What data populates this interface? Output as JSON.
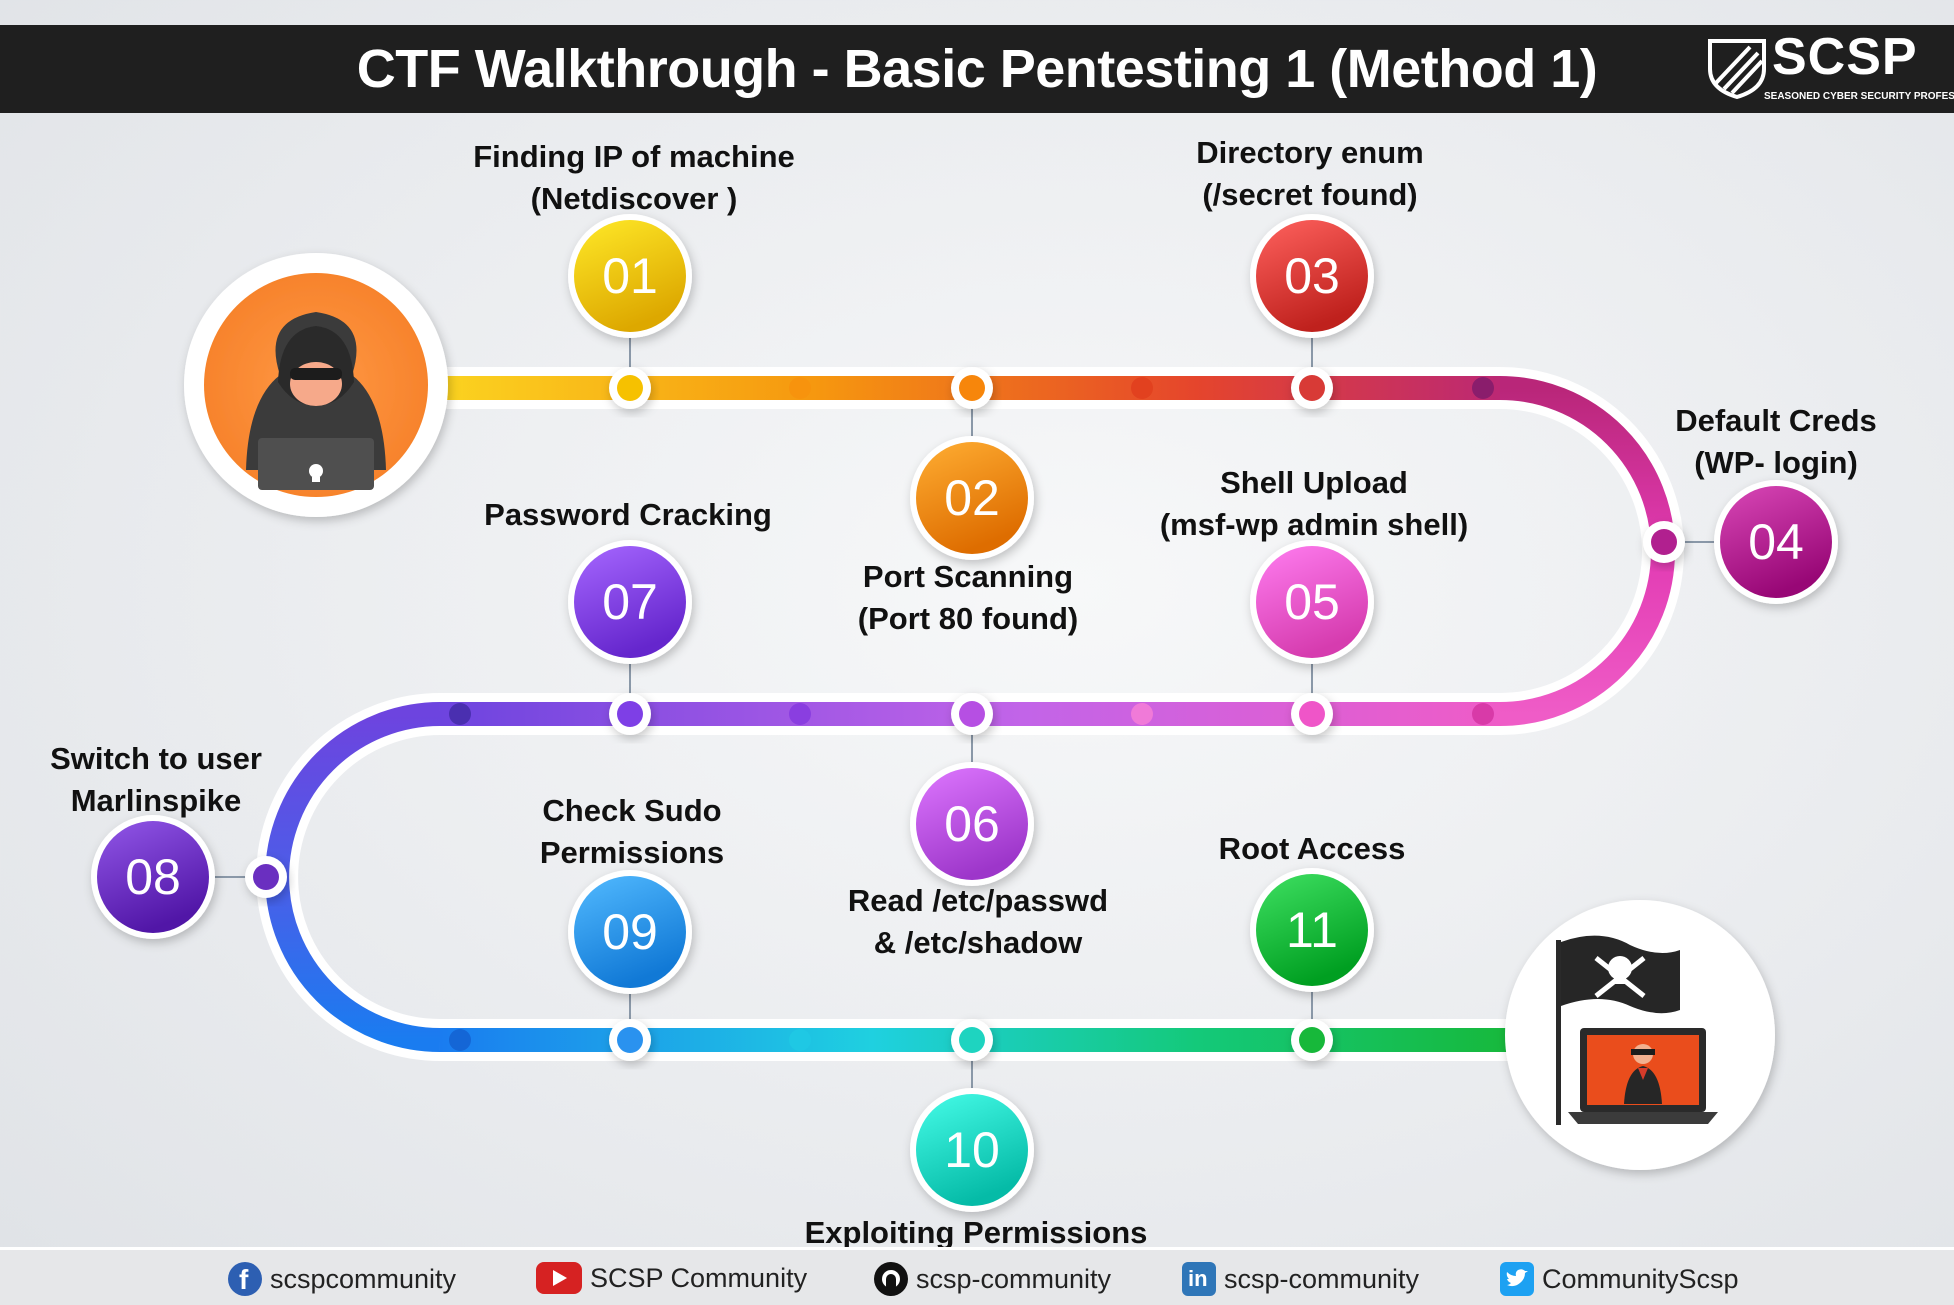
{
  "header": {
    "title": "CTF Walkthrough - Basic Pentesting 1 (Method 1)",
    "logo": {
      "name": "SCSP",
      "tagline": "SEASONED CYBER SECURITY PROFESSIONALS"
    }
  },
  "colors": {
    "title_bar": "#1f1f1f",
    "step_01": "#f6c100",
    "step_02": "#f7860b",
    "step_03": "#d83a36",
    "step_04": "#b1208f",
    "step_05": "#ef55c8",
    "step_06": "#b64fe3",
    "step_07": "#7e3fe6",
    "step_08": "#6a2fc0",
    "step_09": "#2a92ef",
    "step_10": "#1ed4c0",
    "step_11": "#17b83a"
  },
  "steps": [
    {
      "num": "01",
      "line1": "Finding IP of machine",
      "line2": "(Netdiscover )"
    },
    {
      "num": "02",
      "line1": "Port Scanning",
      "line2": "(Port 80 found)"
    },
    {
      "num": "03",
      "line1": "Directory enum",
      "line2": "(/secret found)"
    },
    {
      "num": "04",
      "line1": "Default Creds",
      "line2": "(WP- login)"
    },
    {
      "num": "05",
      "line1": "Shell Upload",
      "line2": "(msf-wp admin shell)"
    },
    {
      "num": "06",
      "line1": "Read /etc/passwd",
      "line2": "& /etc/shadow"
    },
    {
      "num": "07",
      "line1": "Password Cracking",
      "line2": ""
    },
    {
      "num": "08",
      "line1": "Switch to user",
      "line2": "Marlinspike"
    },
    {
      "num": "09",
      "line1": "Check Sudo",
      "line2": "Permissions"
    },
    {
      "num": "10",
      "line1": "Exploiting Permissions",
      "line2": ""
    },
    {
      "num": "11",
      "line1": "Root Access",
      "line2": ""
    }
  ],
  "icons": {
    "start": "hacker-avatar-icon",
    "end": "pirate-flag-laptop-icon"
  },
  "footer": {
    "social": [
      {
        "icon": "facebook-icon",
        "handle": "scspcommunity"
      },
      {
        "icon": "youtube-icon",
        "handle": "SCSP Community"
      },
      {
        "icon": "github-icon",
        "handle": "scsp-community"
      },
      {
        "icon": "linkedin-icon",
        "handle": "scsp-community"
      },
      {
        "icon": "twitter-icon",
        "handle": "CommunityScsp"
      }
    ]
  }
}
